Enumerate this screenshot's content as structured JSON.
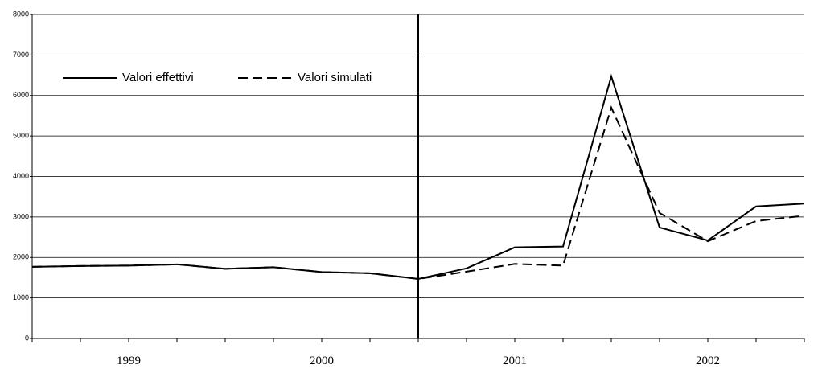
{
  "chart_data": {
    "type": "line",
    "categories": [
      null,
      null,
      "1999",
      null,
      null,
      null,
      "2000",
      null,
      null,
      null,
      "2001",
      null,
      null,
      null,
      "2002",
      null,
      null
    ],
    "series": [
      {
        "name": "Valori effettivi",
        "color": "#000000",
        "dash": "none",
        "values": [
          1770,
          1790,
          1800,
          1830,
          1720,
          1760,
          1640,
          1610,
          1470,
          1730,
          2250,
          2270,
          6470,
          2740,
          2420,
          3260,
          3330
        ]
      },
      {
        "name": "Valori simulati",
        "color": "#000000",
        "dash": "12 6",
        "values": [
          1770,
          1790,
          1800,
          1830,
          1720,
          1760,
          1640,
          1610,
          1470,
          1650,
          1840,
          1800,
          5700,
          3100,
          2400,
          2900,
          3030
        ]
      }
    ],
    "divider_index": 8,
    "ylim": [
      0,
      8000
    ],
    "yticks": [
      0,
      1000,
      2000,
      3000,
      4000,
      5000,
      6000,
      7000,
      8000
    ],
    "grid": true
  }
}
